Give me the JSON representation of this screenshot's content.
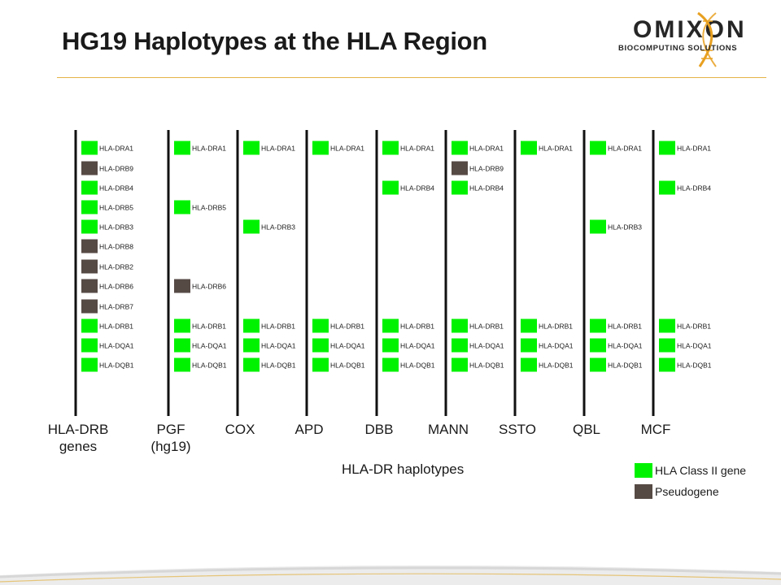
{
  "title": "HG19 Haplotypes at the HLA Region",
  "logo": {
    "name": "OMIXON",
    "tagline": "BIOCOMPUTING SOLUTIONS",
    "accent_color": "#e8a020"
  },
  "colors": {
    "class_ii_gene": "#00f200",
    "pseudogene": "#564a45",
    "line": "#111111"
  },
  "chart_data": {
    "type": "diagram",
    "columns": [
      {
        "label": "HLA-DRB\ngenes",
        "genes": [
          {
            "name": "HLA-DRA1",
            "kind": "gene",
            "slot": 0
          },
          {
            "name": "HLA-DRB9",
            "kind": "pseudo",
            "slot": 1
          },
          {
            "name": "HLA-DRB4",
            "kind": "gene",
            "slot": 2
          },
          {
            "name": "HLA-DRB5",
            "kind": "gene",
            "slot": 3
          },
          {
            "name": "HLA-DRB3",
            "kind": "gene",
            "slot": 4
          },
          {
            "name": "HLA-DRB8",
            "kind": "pseudo",
            "slot": 5
          },
          {
            "name": "HLA-DRB2",
            "kind": "pseudo",
            "slot": 6
          },
          {
            "name": "HLA-DRB6",
            "kind": "pseudo",
            "slot": 7
          },
          {
            "name": "HLA-DRB7",
            "kind": "pseudo",
            "slot": 8
          },
          {
            "name": "HLA-DRB1",
            "kind": "gene",
            "slot": 9
          },
          {
            "name": "HLA-DQA1",
            "kind": "gene",
            "slot": 10
          },
          {
            "name": "HLA-DQB1",
            "kind": "gene",
            "slot": 11
          }
        ]
      },
      {
        "label": "PGF\n(hg19)",
        "genes": [
          {
            "name": "HLA-DRA1",
            "kind": "gene",
            "slot": 0
          },
          {
            "name": "HLA-DRB5",
            "kind": "gene",
            "slot": 3
          },
          {
            "name": "HLA-DRB6",
            "kind": "pseudo",
            "slot": 7
          },
          {
            "name": "HLA-DRB1",
            "kind": "gene",
            "slot": 9
          },
          {
            "name": "HLA-DQA1",
            "kind": "gene",
            "slot": 10
          },
          {
            "name": "HLA-DQB1",
            "kind": "gene",
            "slot": 11
          }
        ]
      },
      {
        "label": "COX",
        "genes": [
          {
            "name": "HLA-DRA1",
            "kind": "gene",
            "slot": 0
          },
          {
            "name": "HLA-DRB3",
            "kind": "gene",
            "slot": 4
          },
          {
            "name": "HLA-DRB1",
            "kind": "gene",
            "slot": 9
          },
          {
            "name": "HLA-DQA1",
            "kind": "gene",
            "slot": 10
          },
          {
            "name": "HLA-DQB1",
            "kind": "gene",
            "slot": 11
          }
        ]
      },
      {
        "label": "APD",
        "genes": [
          {
            "name": "HLA-DRA1",
            "kind": "gene",
            "slot": 0
          },
          {
            "name": "HLA-DRB1",
            "kind": "gene",
            "slot": 9
          },
          {
            "name": "HLA-DQA1",
            "kind": "gene",
            "slot": 10
          },
          {
            "name": "HLA-DQB1",
            "kind": "gene",
            "slot": 11
          }
        ]
      },
      {
        "label": "DBB",
        "genes": [
          {
            "name": "HLA-DRA1",
            "kind": "gene",
            "slot": 0
          },
          {
            "name": "HLA-DRB4",
            "kind": "gene",
            "slot": 2
          },
          {
            "name": "HLA-DRB1",
            "kind": "gene",
            "slot": 9
          },
          {
            "name": "HLA-DQA1",
            "kind": "gene",
            "slot": 10
          },
          {
            "name": "HLA-DQB1",
            "kind": "gene",
            "slot": 11
          }
        ]
      },
      {
        "label": "MANN",
        "genes": [
          {
            "name": "HLA-DRA1",
            "kind": "gene",
            "slot": 0
          },
          {
            "name": "HLA-DRB9",
            "kind": "pseudo",
            "slot": 1
          },
          {
            "name": "HLA-DRB4",
            "kind": "gene",
            "slot": 2
          },
          {
            "name": "HLA-DRB1",
            "kind": "gene",
            "slot": 9
          },
          {
            "name": "HLA-DQA1",
            "kind": "gene",
            "slot": 10
          },
          {
            "name": "HLA-DQB1",
            "kind": "gene",
            "slot": 11
          }
        ]
      },
      {
        "label": "SSTO",
        "genes": [
          {
            "name": "HLA-DRA1",
            "kind": "gene",
            "slot": 0
          },
          {
            "name": "HLA-DRB1",
            "kind": "gene",
            "slot": 9
          },
          {
            "name": "HLA-DQA1",
            "kind": "gene",
            "slot": 10
          },
          {
            "name": "HLA-DQB1",
            "kind": "gene",
            "slot": 11
          }
        ]
      },
      {
        "label": "QBL",
        "genes": [
          {
            "name": "HLA-DRA1",
            "kind": "gene",
            "slot": 0
          },
          {
            "name": "HLA-DRB3",
            "kind": "gene",
            "slot": 4
          },
          {
            "name": "HLA-DRB1",
            "kind": "gene",
            "slot": 9
          },
          {
            "name": "HLA-DQA1",
            "kind": "gene",
            "slot": 10
          },
          {
            "name": "HLA-DQB1",
            "kind": "gene",
            "slot": 11
          }
        ]
      },
      {
        "label": "MCF",
        "genes": [
          {
            "name": "HLA-DRA1",
            "kind": "gene",
            "slot": 0
          },
          {
            "name": "HLA-DRB4",
            "kind": "gene",
            "slot": 2
          },
          {
            "name": "HLA-DRB1",
            "kind": "gene",
            "slot": 9
          },
          {
            "name": "HLA-DQA1",
            "kind": "gene",
            "slot": 10
          },
          {
            "name": "HLA-DQB1",
            "kind": "gene",
            "slot": 11
          }
        ]
      }
    ],
    "xlabel": "HLA-DR haplotypes",
    "legend": [
      {
        "label": "HLA Class II gene",
        "kind": "gene"
      },
      {
        "label": "Pseudogene",
        "kind": "pseudo"
      }
    ],
    "legend_position": "bottom-right"
  }
}
